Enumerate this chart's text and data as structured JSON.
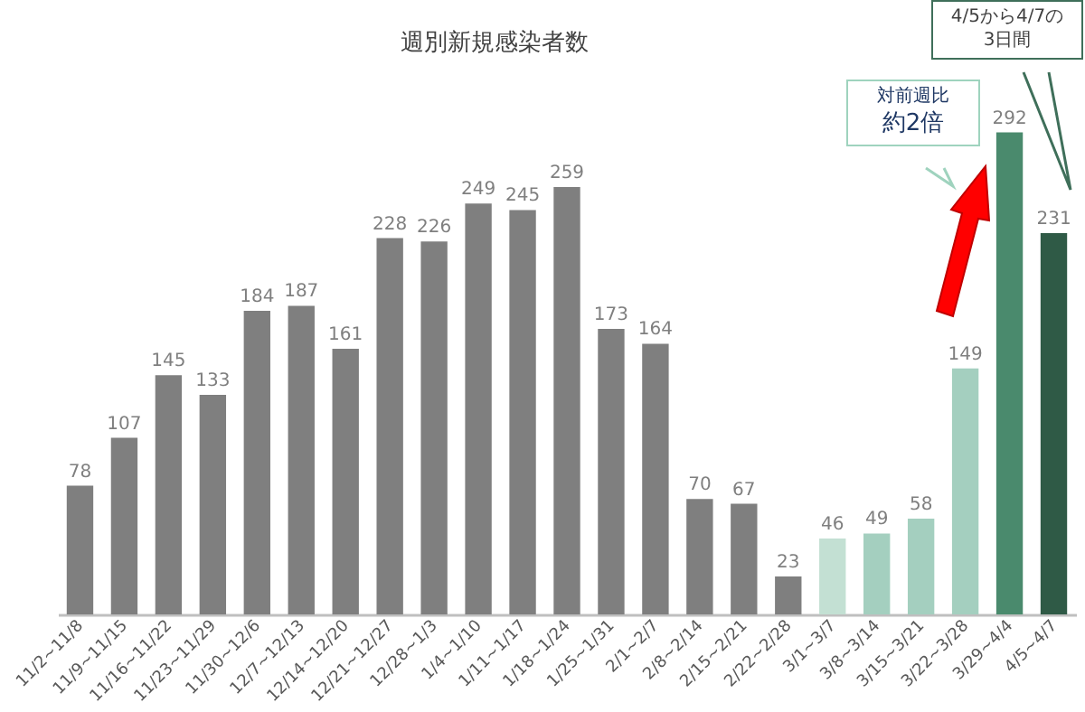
{
  "chart_data": {
    "type": "bar",
    "title": "週別新規感染者数",
    "categories": [
      "11/2~11/8",
      "11/9~11/15",
      "11/16~11/22",
      "11/23~11/29",
      "11/30~12/6",
      "12/7~12/13",
      "12/14~12/20",
      "12/21~12/27",
      "12/28~1/3",
      "1/4~1/10",
      "1/11~1/17",
      "1/18~1/24",
      "1/25~1/31",
      "2/1~2/7",
      "2/8~2/14",
      "2/15~2/21",
      "2/22~2/28",
      "3/1~3/7",
      "3/8~3/14",
      "3/15~3/21",
      "3/22~3/28",
      "3/29~4/4",
      "4/5~4/7"
    ],
    "values": [
      78,
      107,
      145,
      133,
      184,
      187,
      161,
      228,
      226,
      249,
      245,
      259,
      173,
      164,
      70,
      67,
      23,
      46,
      49,
      58,
      149,
      292,
      231
    ],
    "colors": [
      "#7f7f7f",
      "#7f7f7f",
      "#7f7f7f",
      "#7f7f7f",
      "#7f7f7f",
      "#7f7f7f",
      "#7f7f7f",
      "#7f7f7f",
      "#7f7f7f",
      "#7f7f7f",
      "#7f7f7f",
      "#7f7f7f",
      "#7f7f7f",
      "#7f7f7f",
      "#7f7f7f",
      "#7f7f7f",
      "#7f7f7f",
      "#c3e0d3",
      "#a4cfbf",
      "#a4cfbf",
      "#a4cfbf",
      "#4a8a6d",
      "#2f5a46"
    ],
    "data_labels": true,
    "annotations": [
      "対前週比",
      "約2倍",
      "4/5から4/7の",
      "3日間"
    ]
  }
}
